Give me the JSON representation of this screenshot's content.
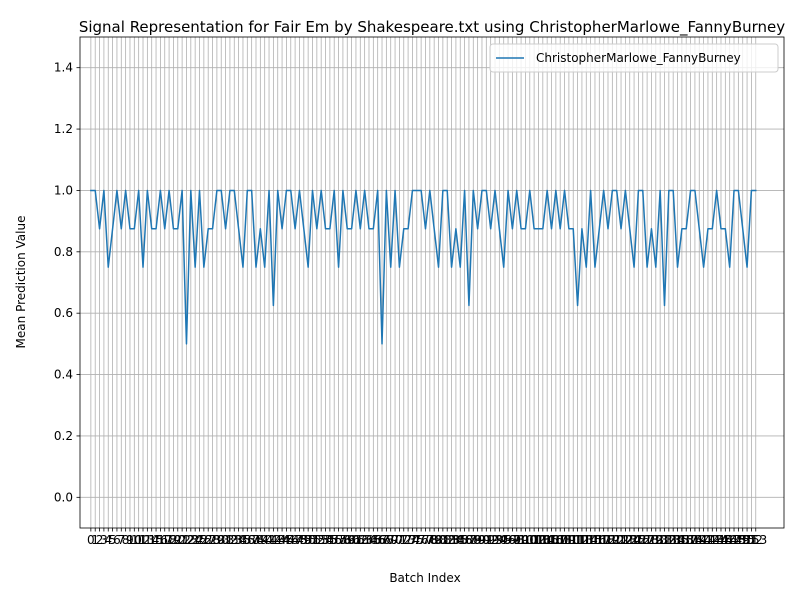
{
  "chart_data": {
    "type": "line",
    "title": "Signal Representation for Fair Em by Shakespeare.txt using ChristopherMarlowe_FannyBurney",
    "xlabel": "Batch Index",
    "ylabel": "Mean Prediction Value",
    "xlim": [
      -2.5,
      159.5
    ],
    "ylim": [
      -0.1,
      1.5
    ],
    "yticks": [
      0.0,
      0.2,
      0.4,
      0.6,
      0.8,
      1.0,
      1.2,
      1.4
    ],
    "ytick_labels": [
      "0.0",
      "0.2",
      "0.4",
      "0.6",
      "0.8",
      "1.0",
      "1.2",
      "1.4"
    ],
    "grid": true,
    "legend_position": "top-right",
    "colors": {
      "line": "#1f77b4",
      "grid": "#b0b0b0"
    },
    "series": [
      {
        "name": "ChristopherMarlowe_FannyBurney",
        "values": [
          1.0,
          1.0,
          0.875,
          1.0,
          0.75,
          0.875,
          1.0,
          0.875,
          1.0,
          0.875,
          0.875,
          1.0,
          0.75,
          1.0,
          0.875,
          0.875,
          1.0,
          0.875,
          1.0,
          0.875,
          0.875,
          1.0,
          0.5,
          1.0,
          0.75,
          1.0,
          0.75,
          0.875,
          0.875,
          1.0,
          1.0,
          0.875,
          1.0,
          1.0,
          0.875,
          0.75,
          1.0,
          1.0,
          0.75,
          0.875,
          0.75,
          1.0,
          0.625,
          1.0,
          0.875,
          1.0,
          1.0,
          0.875,
          1.0,
          0.875,
          0.75,
          1.0,
          0.875,
          1.0,
          0.875,
          0.875,
          1.0,
          0.75,
          1.0,
          0.875,
          0.875,
          1.0,
          0.875,
          1.0,
          0.875,
          0.875,
          1.0,
          0.5,
          1.0,
          0.75,
          1.0,
          0.75,
          0.875,
          0.875,
          1.0,
          1.0,
          1.0,
          0.875,
          1.0,
          0.875,
          0.75,
          1.0,
          1.0,
          0.75,
          0.875,
          0.75,
          1.0,
          0.625,
          1.0,
          0.875,
          1.0,
          1.0,
          0.875,
          1.0,
          0.875,
          0.75,
          1.0,
          0.875,
          1.0,
          0.875,
          0.875,
          1.0,
          0.875,
          0.875,
          0.875,
          1.0,
          0.875,
          1.0,
          0.875,
          1.0,
          0.875,
          0.875,
          0.625,
          0.875,
          0.75,
          1.0,
          0.75,
          0.875,
          1.0,
          0.875,
          1.0,
          1.0,
          0.875,
          1.0,
          0.875,
          0.75,
          1.0,
          1.0,
          0.75,
          0.875,
          0.75,
          1.0,
          0.625,
          1.0,
          1.0,
          0.75,
          0.875,
          0.875,
          1.0,
          1.0,
          0.875,
          0.75,
          0.875,
          0.875,
          1.0,
          0.875,
          0.875,
          0.75,
          1.0,
          1.0,
          0.875,
          0.75,
          1.0,
          1.0
        ]
      }
    ]
  }
}
